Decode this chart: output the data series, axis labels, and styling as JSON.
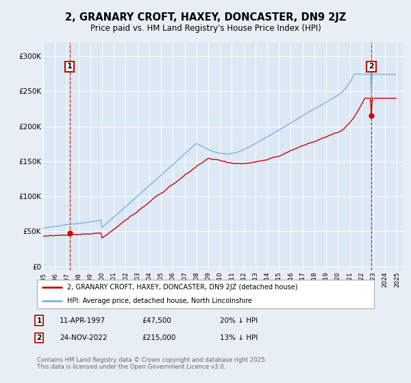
{
  "title": "2, GRANARY CROFT, HAXEY, DONCASTER, DN9 2JZ",
  "subtitle": "Price paid vs. HM Land Registry's House Price Index (HPI)",
  "background_color": "#e8eef5",
  "plot_bg_color": "#dce8f4",
  "y_ticks": [
    0,
    50000,
    100000,
    150000,
    200000,
    250000,
    300000
  ],
  "y_tick_labels": [
    "£0",
    "£50K",
    "£100K",
    "£150K",
    "£200K",
    "£250K",
    "£300K"
  ],
  "hpi_color": "#7ab4d8",
  "price_color": "#cc0000",
  "vline_color": "#cc0000",
  "marker1_price": 47500,
  "marker1_label": "1",
  "marker2_price": 215000,
  "marker2_label": "2",
  "legend_line1": "2, GRANARY CROFT, HAXEY, DONCASTER, DN9 2JZ (detached house)",
  "legend_line2": "HPI: Average price, detached house, North Lincolnshire",
  "note1_label": "1",
  "note1_date": "11-APR-1997",
  "note1_price": "£47,500",
  "note1_hpi": "20% ↓ HPI",
  "note2_label": "2",
  "note2_date": "24-NOV-2022",
  "note2_price": "£215,000",
  "note2_hpi": "13% ↓ HPI",
  "copyright": "Contains HM Land Registry data © Crown copyright and database right 2025.\nThis data is licensed under the Open Government Licence v3.0."
}
